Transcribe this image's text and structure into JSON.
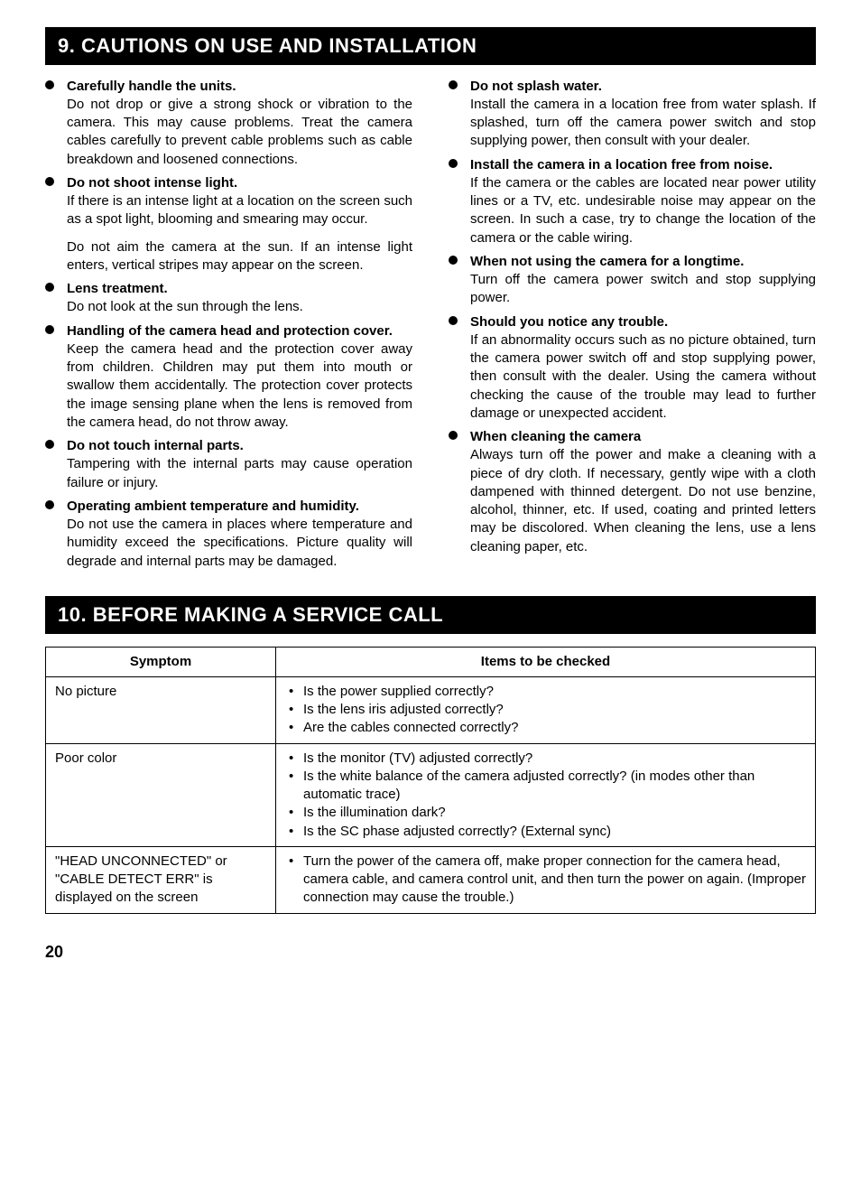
{
  "sections": {
    "cautions": {
      "header": "9. CAUTIONS ON USE AND INSTALLATION",
      "left": [
        {
          "title": "Carefully handle the units.",
          "body": "Do not drop or give a strong shock or vibration to the camera. This may cause problems. Treat the camera cables carefully to prevent cable problems such as cable breakdown and loosened connections."
        },
        {
          "title": "Do not shoot intense light.",
          "body": "If there is an intense light at a location on the screen such as a spot light, blooming and smearing may occur.",
          "body2": "Do not aim the camera at the sun. If an intense light enters, vertical stripes may appear on the screen."
        },
        {
          "title": "Lens treatment.",
          "body": "Do not look at the sun through the lens."
        },
        {
          "title": "Handling of the camera head and protection cover.",
          "body": "Keep the camera head and the protection cover away from children. Children may put them into mouth or swallow them accidentally. The protection cover protects the image sensing plane when the lens is removed from the camera head, do not throw away."
        },
        {
          "title": "Do not touch internal parts.",
          "body": "Tampering with the internal parts may cause operation failure or injury."
        },
        {
          "title": "Operating ambient temperature and humidity.",
          "body": "Do not use the camera in places where temperature and humidity exceed the specifications. Picture quality will degrade and internal parts may be damaged."
        }
      ],
      "right": [
        {
          "title": "Do not splash water.",
          "body": "Install the camera in a location free from water splash. If splashed, turn off the camera power switch and stop supplying power, then consult with your dealer."
        },
        {
          "title": "Install the camera in a location free from noise.",
          "body": "If the camera or the cables are located near power utility lines or a TV, etc. undesirable noise may appear on the screen. In such a case, try to change the location of the camera or the cable wiring."
        },
        {
          "title": "When not using the camera for a longtime.",
          "body": "Turn off the camera power switch and stop supplying power."
        },
        {
          "title": "Should you notice any trouble.",
          "body": "If an abnormality occurs such as no picture obtained, turn the camera power switch off and stop supplying power, then consult with the dealer. Using the camera without checking the cause of the trouble may lead to further damage or unexpected accident."
        },
        {
          "title": "When cleaning the camera",
          "body": "Always turn off the power and make a cleaning with a piece of dry cloth. If necessary, gently wipe with a cloth dampened with thinned detergent. Do not use benzine, alcohol, thinner, etc. If used, coating and printed letters may be discolored. When cleaning the lens, use a lens cleaning paper, etc."
        }
      ]
    },
    "service": {
      "header": "10. BEFORE MAKING A SERVICE CALL",
      "columns": {
        "symptom": "Symptom",
        "items": "Items to be checked"
      },
      "rows": [
        {
          "symptom": "No picture",
          "checks": [
            "Is the power supplied correctly?",
            "Is the lens iris adjusted correctly?",
            "Are the cables connected correctly?"
          ]
        },
        {
          "symptom": "Poor color",
          "checks": [
            "Is the monitor (TV) adjusted correctly?",
            "Is the white balance of the camera adjusted correctly? (in modes other than automatic trace)",
            "Is the illumination dark?",
            "Is the SC phase adjusted correctly? (External sync)"
          ]
        },
        {
          "symptom": "\"HEAD UNCONNECTED\" or \"CABLE DETECT ERR\" is displayed on the screen",
          "checks": [
            "Turn the power of the camera off, make proper connection for the camera head, camera cable, and camera control unit, and then turn the power on again. (Improper connection may cause the trouble.)"
          ]
        }
      ]
    }
  },
  "page_number": "20",
  "colors": {
    "header_bg": "#000000",
    "header_fg": "#ffffff",
    "text": "#000000",
    "page_bg": "#ffffff"
  }
}
